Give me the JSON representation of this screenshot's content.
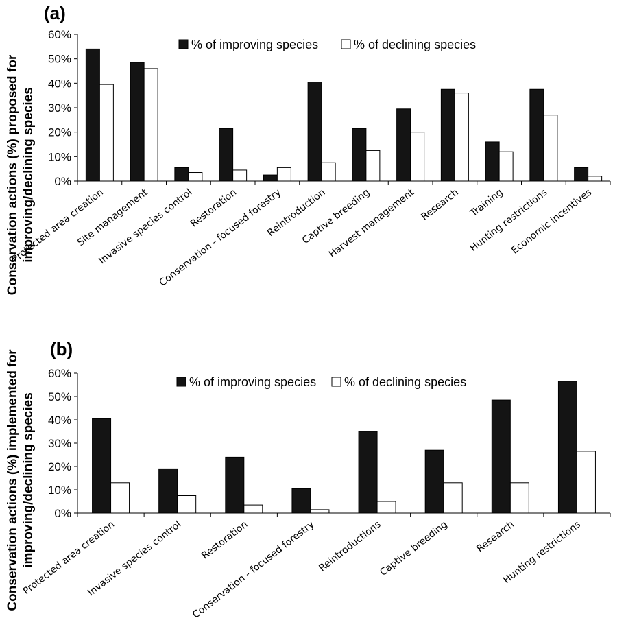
{
  "colors": {
    "improving": "#141414",
    "declining": "#ffffff",
    "stroke": "#000000"
  },
  "chart_data": [
    {
      "type": "bar",
      "panel_label": "(a)",
      "ylabel_lines": [
        "Conservation actions (%) proposed for",
        "improving/declining species"
      ],
      "ylim": [
        0,
        60
      ],
      "yticks": [
        "0%",
        "10%",
        "20%",
        "30%",
        "40%",
        "50%",
        "60%"
      ],
      "legend_position": "top",
      "categories": [
        "Protected area creation",
        "Site management",
        "Invasive species control",
        "Restoration",
        "Conservation - focused forestry",
        "Reintroduction",
        "Captive breeding",
        "Harvest management",
        "Research",
        "Training",
        "Hunting restrictions",
        "Economic incentives"
      ],
      "series": [
        {
          "name": "% of improving species",
          "values": [
            54,
            48.5,
            5.5,
            21.5,
            2.5,
            40.5,
            21.5,
            29.5,
            37.5,
            16,
            37.5,
            5.5
          ]
        },
        {
          "name": "% of declining species",
          "values": [
            39.5,
            46,
            3.5,
            4.5,
            5.5,
            7.5,
            12.5,
            20,
            36,
            12,
            27,
            2
          ]
        }
      ]
    },
    {
      "type": "bar",
      "panel_label": "(b)",
      "ylabel_lines": [
        "Conservation actions (%) implemented for",
        "improving/declining species"
      ],
      "ylim": [
        0,
        60
      ],
      "yticks": [
        "0%",
        "10%",
        "20%",
        "30%",
        "40%",
        "50%",
        "60%"
      ],
      "legend_position": "top",
      "categories": [
        "Protected area creation",
        "Invasive species control",
        "Restoration",
        "Conservation - focused forestry",
        "Reintroductions",
        "Captive breeding",
        "Research",
        "Hunting restrictions"
      ],
      "series": [
        {
          "name": "% of improving species",
          "values": [
            40.5,
            19,
            24,
            10.5,
            35,
            27,
            48.5,
            56.5
          ]
        },
        {
          "name": "% of declining species",
          "values": [
            13,
            7.5,
            3.5,
            1.5,
            5,
            13,
            13,
            26.5
          ]
        }
      ]
    }
  ]
}
